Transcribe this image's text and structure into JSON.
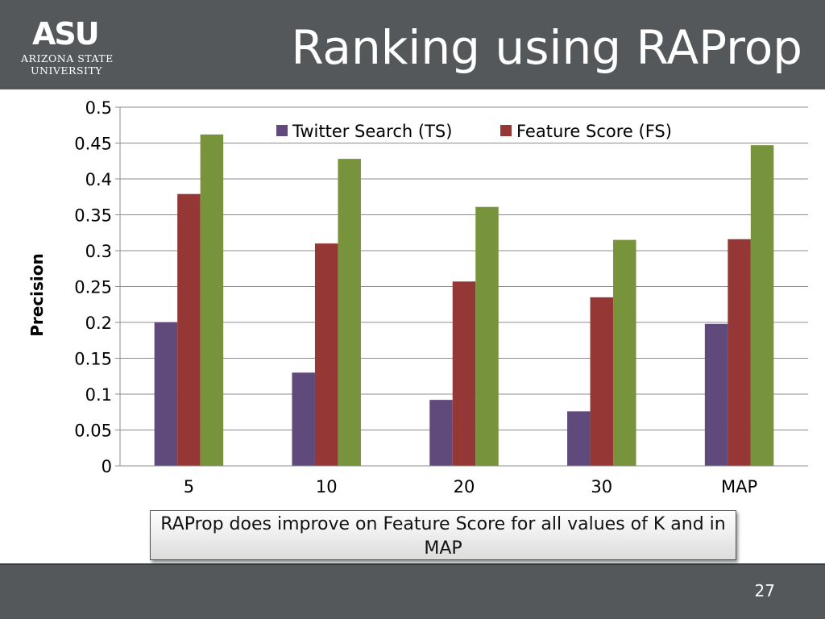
{
  "header": {
    "title": "Ranking using RAProp",
    "logo": {
      "mark": "ASU",
      "line1": "Arizona State",
      "line2": "University"
    }
  },
  "callout": {
    "text": "RAProp does improve on Feature Score for all values of K and in MAP"
  },
  "footer": {
    "page_number": "27"
  },
  "chart_data": {
    "type": "bar",
    "categories": [
      "5",
      "10",
      "20",
      "30",
      "MAP"
    ],
    "series": [
      {
        "name": "Twitter Search (TS)",
        "color": "#604a7b",
        "values": [
          0.2,
          0.13,
          0.092,
          0.076,
          0.198
        ]
      },
      {
        "name": "Feature Score (FS)",
        "color": "#953735",
        "values": [
          0.379,
          0.31,
          0.257,
          0.235,
          0.316
        ]
      },
      {
        "name": "",
        "color": "#77933c",
        "values": [
          0.462,
          0.428,
          0.361,
          0.315,
          0.447
        ]
      }
    ],
    "title": "",
    "xlabel": "",
    "ylabel": "Precision",
    "ylim": [
      0,
      0.5
    ],
    "yticks": [
      "0",
      "0.05",
      "0.1",
      "0.15",
      "0.2",
      "0.25",
      "0.3",
      "0.35",
      "0.4",
      "0.45",
      "0.5"
    ],
    "grid": true,
    "legend_position": "top"
  }
}
